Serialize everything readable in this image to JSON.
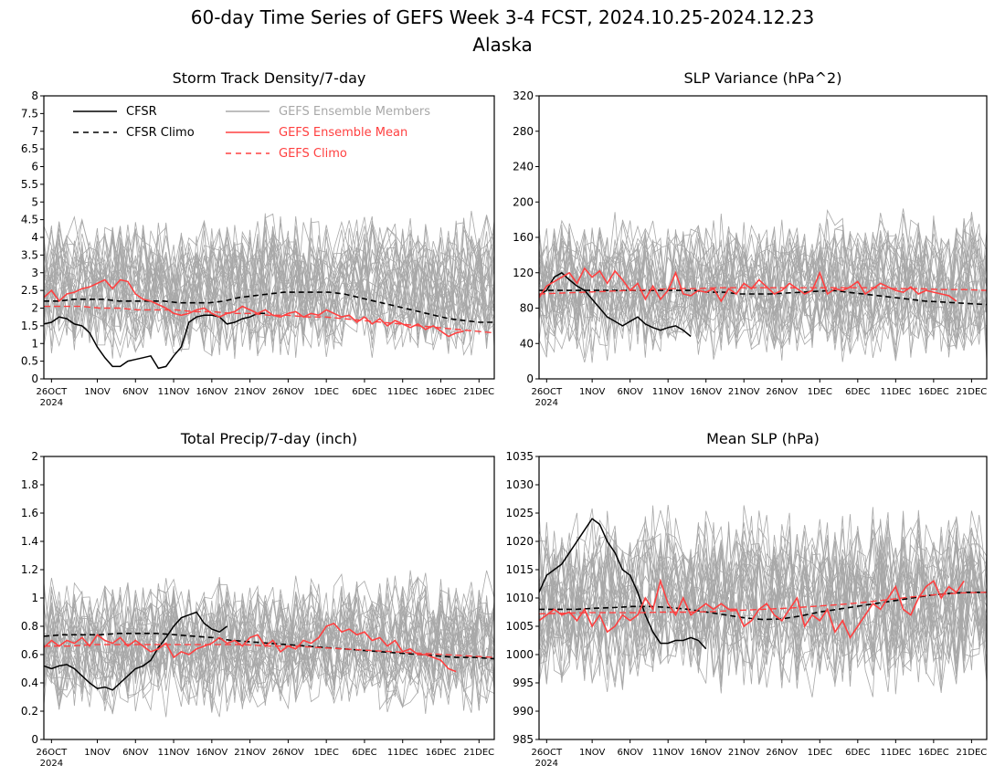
{
  "figure": {
    "title_line1": "60-day Time Series of GEFS Week 3-4 FCST, 2024.10.25-2024.12.23",
    "title_line2": "Alaska"
  },
  "colors": {
    "cfsr": "#000000",
    "ensemble_members": "#a8a8a8",
    "ensemble_mean": "#ff4040",
    "gefs_climo": "#ff4040"
  },
  "legend": {
    "cfsr": "CFSR",
    "cfsr_climo": "CFSR Climo",
    "members": "GEFS Ensemble Members",
    "mean": "GEFS Ensemble Mean",
    "gefs_climo": "GEFS Climo"
  },
  "x_axis": {
    "tick_days": [
      1,
      7,
      12,
      17,
      22,
      27,
      32,
      37,
      42,
      47,
      52,
      57
    ],
    "tick_labels": [
      "26OCT",
      "1NOV",
      "6NOV",
      "11NOV",
      "16NOV",
      "21NOV",
      "26NOV",
      "1DEC",
      "6DEC",
      "11DEC",
      "16DEC",
      "21DEC"
    ],
    "year_label": "2024"
  },
  "chart_data": [
    {
      "type": "line",
      "title": "Storm Track Density/7-day",
      "x_range": [
        0,
        59
      ],
      "ylim": [
        0,
        8
      ],
      "y_ticks": [
        "0",
        "0.5",
        "1",
        "1.5",
        "2",
        "2.5",
        "3",
        "3.5",
        "4",
        "4.5",
        "5",
        "5.5",
        "6",
        "6.5",
        "7",
        "7.5",
        "8"
      ],
      "members_band": [
        1.0,
        4.2
      ],
      "series": [
        {
          "name": "CFSR",
          "style": "solid-black",
          "x_start": 0,
          "values": [
            1.55,
            1.6,
            1.75,
            1.7,
            1.55,
            1.5,
            1.3,
            0.9,
            0.6,
            0.35,
            0.35,
            0.5,
            0.55,
            0.6,
            0.65,
            0.3,
            0.35,
            0.65,
            0.9,
            1.6,
            1.75,
            1.8,
            1.8,
            1.75,
            1.55,
            1.6,
            1.7,
            1.75,
            1.85,
            1.85
          ]
        },
        {
          "name": "CFSR Climo",
          "style": "dashed-black",
          "x_start": 0,
          "values": [
            2.2,
            2.2,
            2.25,
            2.25,
            2.25,
            2.2,
            2.2,
            2.2,
            2.2,
            2.15,
            2.15,
            2.15,
            2.2,
            2.3,
            2.35,
            2.4,
            2.45,
            2.45,
            2.45,
            2.45,
            2.4,
            2.3,
            2.2,
            2.1,
            2.0,
            1.9,
            1.8,
            1.7,
            1.65,
            1.6,
            1.6
          ]
        },
        {
          "name": "GEFS Ensemble Mean",
          "style": "solid-red",
          "x_start": 0,
          "values": [
            2.3,
            2.5,
            2.2,
            2.4,
            2.45,
            2.55,
            2.6,
            2.7,
            2.8,
            2.55,
            2.8,
            2.75,
            2.4,
            2.25,
            2.2,
            2.1,
            2.0,
            1.85,
            1.8,
            1.85,
            1.95,
            2.0,
            1.85,
            1.75,
            1.85,
            1.9,
            2.05,
            1.95,
            1.85,
            1.95,
            1.8,
            1.75,
            1.85,
            1.9,
            1.75,
            1.85,
            1.8,
            1.95,
            1.85,
            1.75,
            1.8,
            1.6,
            1.75,
            1.55,
            1.7,
            1.5,
            1.65,
            1.55,
            1.45,
            1.55,
            1.4,
            1.5,
            1.35,
            1.2,
            1.3,
            1.35
          ]
        },
        {
          "name": "GEFS Climo",
          "style": "dashed-red",
          "x_start": 0,
          "values": [
            2.05,
            2.05,
            2.05,
            2.0,
            2.0,
            1.95,
            1.95,
            1.95,
            1.9,
            1.9,
            1.85,
            1.85,
            1.8,
            1.8,
            1.75,
            1.75,
            1.7,
            1.65,
            1.6,
            1.55,
            1.5,
            1.45,
            1.4,
            1.35,
            1.3
          ]
        }
      ]
    },
    {
      "type": "line",
      "title": "SLP Variance (hPa^2)",
      "x_range": [
        0,
        59
      ],
      "ylim": [
        0,
        320
      ],
      "y_ticks": [
        "0",
        "40",
        "80",
        "120",
        "160",
        "200",
        "240",
        "280",
        "320"
      ],
      "members_band": [
        40,
        170
      ],
      "series": [
        {
          "name": "CFSR",
          "style": "solid-black",
          "x_start": 0,
          "values": [
            95,
            100,
            115,
            120,
            112,
            105,
            100,
            90,
            80,
            70,
            65,
            60,
            65,
            70,
            62,
            58,
            55,
            58,
            60,
            55,
            48
          ]
        },
        {
          "name": "CFSR Climo",
          "style": "dashed-black",
          "x_start": 0,
          "values": [
            100,
            100,
            100,
            100,
            100,
            100,
            100,
            100,
            100,
            100,
            100,
            98,
            98,
            96,
            96,
            96,
            97,
            98,
            99,
            100,
            98,
            96,
            94,
            92,
            90,
            88,
            87,
            86,
            85,
            84
          ]
        },
        {
          "name": "GEFS Ensemble Mean",
          "style": "solid-red",
          "x_start": 0,
          "values": [
            92,
            105,
            110,
            115,
            120,
            108,
            125,
            115,
            122,
            108,
            122,
            112,
            100,
            108,
            90,
            105,
            90,
            100,
            120,
            96,
            94,
            100,
            98,
            102,
            88,
            102,
            96,
            108,
            102,
            112,
            104,
            96,
            100,
            108,
            102,
            96,
            100,
            120,
            96,
            102,
            100,
            104,
            110,
            96,
            102,
            108,
            104,
            100,
            98,
            104,
            96,
            100,
            98,
            96,
            94,
            88
          ]
        },
        {
          "name": "GEFS Climo",
          "style": "dashed-red",
          "x_start": 0,
          "values": [
            96,
            97,
            98,
            99,
            100,
            101,
            102,
            102,
            103,
            103,
            103,
            103,
            103,
            103,
            103,
            103,
            102,
            102,
            101,
            101,
            100
          ]
        }
      ]
    },
    {
      "type": "line",
      "title": "Total Precip/7-day (inch)",
      "x_range": [
        0,
        59
      ],
      "ylim": [
        0,
        2
      ],
      "y_ticks": [
        "0",
        "0.2",
        "0.4",
        "0.6",
        "0.8",
        "1",
        "1.2",
        "1.4",
        "1.6",
        "1.8",
        "2"
      ],
      "members_band": [
        0.3,
        1.05
      ],
      "series": [
        {
          "name": "CFSR",
          "style": "solid-black",
          "x_start": 0,
          "values": [
            0.52,
            0.5,
            0.52,
            0.53,
            0.5,
            0.45,
            0.4,
            0.36,
            0.37,
            0.35,
            0.4,
            0.45,
            0.5,
            0.52,
            0.56,
            0.65,
            0.72,
            0.8,
            0.86,
            0.88,
            0.9,
            0.82,
            0.78,
            0.76,
            0.8
          ]
        },
        {
          "name": "CFSR Climo",
          "style": "dashed-black",
          "x_start": 0,
          "values": [
            0.73,
            0.74,
            0.74,
            0.74,
            0.75,
            0.75,
            0.75,
            0.74,
            0.73,
            0.72,
            0.7,
            0.69,
            0.68,
            0.67,
            0.66,
            0.65,
            0.64,
            0.63,
            0.62,
            0.61,
            0.6,
            0.59,
            0.58,
            0.58,
            0.57
          ]
        },
        {
          "name": "GEFS Ensemble Mean",
          "style": "solid-red",
          "x_start": 0,
          "values": [
            0.65,
            0.7,
            0.66,
            0.7,
            0.68,
            0.72,
            0.66,
            0.74,
            0.7,
            0.68,
            0.72,
            0.66,
            0.7,
            0.66,
            0.62,
            0.64,
            0.68,
            0.58,
            0.62,
            0.6,
            0.64,
            0.66,
            0.68,
            0.72,
            0.68,
            0.7,
            0.66,
            0.72,
            0.74,
            0.66,
            0.7,
            0.62,
            0.66,
            0.64,
            0.7,
            0.68,
            0.72,
            0.8,
            0.82,
            0.76,
            0.78,
            0.74,
            0.76,
            0.7,
            0.72,
            0.66,
            0.7,
            0.62,
            0.64,
            0.6,
            0.6,
            0.58,
            0.56,
            0.5,
            0.48
          ]
        },
        {
          "name": "GEFS Climo",
          "style": "dashed-red",
          "x_start": 0,
          "values": [
            0.66,
            0.66,
            0.67,
            0.67,
            0.67,
            0.67,
            0.67,
            0.67,
            0.67,
            0.66,
            0.66,
            0.65,
            0.64,
            0.63,
            0.62,
            0.61,
            0.6,
            0.59,
            0.58
          ]
        }
      ]
    },
    {
      "type": "line",
      "title": "Mean SLP (hPa)",
      "x_range": [
        0,
        59
      ],
      "ylim": [
        985,
        1035
      ],
      "y_ticks": [
        "985",
        "990",
        "995",
        "1000",
        "1005",
        "1010",
        "1015",
        "1020",
        "1025",
        "1030",
        "1035"
      ],
      "members_band": [
        997,
        1022
      ],
      "series": [
        {
          "name": "CFSR",
          "style": "solid-black",
          "x_start": 0,
          "values": [
            1011,
            1014,
            1015,
            1016,
            1018,
            1020,
            1022,
            1024,
            1023,
            1020,
            1018,
            1015,
            1014,
            1011,
            1007,
            1004,
            1002,
            1002,
            1002.5,
            1002.5,
            1003,
            1002.5,
            1001
          ]
        },
        {
          "name": "CFSR Climo",
          "style": "dashed-black",
          "x_start": 0,
          "values": [
            1008,
            1008,
            1008,
            1008.2,
            1008.3,
            1008.5,
            1008.5,
            1008.3,
            1008,
            1007.5,
            1007,
            1006.5,
            1006.2,
            1006.3,
            1006.8,
            1007.5,
            1008,
            1008.5,
            1009,
            1009.5,
            1010,
            1010.5,
            1010.8,
            1011,
            1011
          ]
        },
        {
          "name": "GEFS Ensemble Mean",
          "style": "solid-red",
          "x_start": 0,
          "values": [
            1006,
            1007,
            1008,
            1007,
            1007.5,
            1006,
            1008,
            1005,
            1007,
            1004,
            1005,
            1007,
            1006,
            1007,
            1010,
            1008,
            1013,
            1009,
            1007,
            1010,
            1007,
            1008,
            1009,
            1008,
            1009,
            1008,
            1008,
            1005,
            1006,
            1008,
            1009,
            1007,
            1006,
            1008,
            1010,
            1005,
            1007,
            1006,
            1008,
            1004,
            1006,
            1003,
            1005,
            1007,
            1009,
            1008,
            1010,
            1012,
            1008,
            1007,
            1010,
            1012,
            1013,
            1010,
            1012,
            1011,
            1013
          ]
        },
        {
          "name": "GEFS Climo",
          "style": "dashed-red",
          "x_start": 0,
          "values": [
            1007.2,
            1007.3,
            1007.4,
            1007.4,
            1007.4,
            1007.5,
            1007.5,
            1007.6,
            1007.8,
            1008,
            1008.2,
            1008.5,
            1008.8,
            1009.2,
            1009.7,
            1010.2,
            1010.6,
            1010.9,
            1011
          ]
        }
      ]
    }
  ]
}
